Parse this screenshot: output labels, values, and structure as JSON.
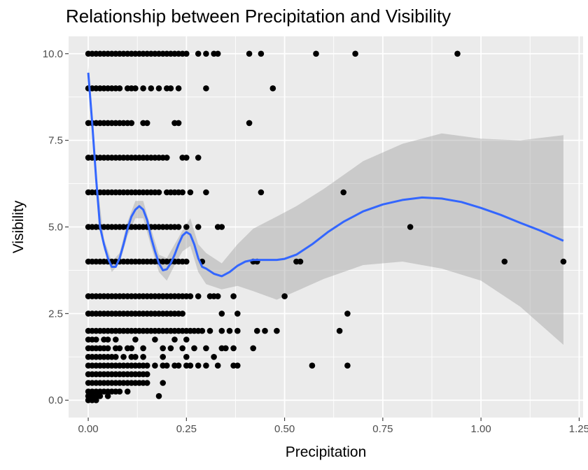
{
  "chart_data": {
    "type": "scatter",
    "title": "Relationship between Precipitation and Visibility",
    "xlabel": "Precipitation",
    "ylabel": "Visibility",
    "xlim": [
      -0.05,
      1.26
    ],
    "ylim": [
      -0.5,
      10.5
    ],
    "x_ticks": [
      0.0,
      0.25,
      0.5,
      0.75,
      1.0,
      1.25
    ],
    "x_tick_labels": [
      "0.00",
      "0.25",
      "0.50",
      "0.75",
      "1.00",
      "1.25"
    ],
    "y_ticks": [
      0.0,
      2.5,
      5.0,
      7.5,
      10.0
    ],
    "y_tick_labels": [
      "0.0",
      "2.5",
      "5.0",
      "7.5",
      "10.0"
    ],
    "grid": true,
    "panel_background": "#ebebeb",
    "grid_color": "#ffffff",
    "point_color": "#000000",
    "smooth_color": "#3366ff",
    "ribbon_color": "#999999",
    "points": [
      {
        "y": 10,
        "x": [
          0.0,
          0.01,
          0.02,
          0.03,
          0.04,
          0.05,
          0.06,
          0.07,
          0.08,
          0.09,
          0.1,
          0.11,
          0.12,
          0.13,
          0.14,
          0.15,
          0.16,
          0.17,
          0.18,
          0.19,
          0.2,
          0.21,
          0.22,
          0.23,
          0.24,
          0.25,
          0.28,
          0.3,
          0.32,
          0.33,
          0.41,
          0.44,
          0.58,
          0.68,
          0.94
        ]
      },
      {
        "y": 9,
        "x": [
          0.0,
          0.01,
          0.02,
          0.03,
          0.04,
          0.05,
          0.06,
          0.07,
          0.08,
          0.1,
          0.11,
          0.12,
          0.14,
          0.16,
          0.18,
          0.2,
          0.21,
          0.23,
          0.3,
          0.47
        ]
      },
      {
        "y": 8,
        "x": [
          0.0,
          0.01,
          0.02,
          0.03,
          0.04,
          0.05,
          0.06,
          0.07,
          0.08,
          0.09,
          0.1,
          0.11,
          0.14,
          0.15,
          0.22,
          0.23,
          0.41
        ]
      },
      {
        "y": 7,
        "x": [
          0.0,
          0.01,
          0.02,
          0.03,
          0.04,
          0.05,
          0.06,
          0.07,
          0.08,
          0.09,
          0.1,
          0.11,
          0.12,
          0.13,
          0.14,
          0.15,
          0.16,
          0.17,
          0.18,
          0.19,
          0.2,
          0.24,
          0.25,
          0.28
        ]
      },
      {
        "y": 6,
        "x": [
          0.0,
          0.01,
          0.02,
          0.03,
          0.04,
          0.05,
          0.06,
          0.07,
          0.08,
          0.09,
          0.1,
          0.11,
          0.12,
          0.13,
          0.14,
          0.15,
          0.16,
          0.17,
          0.18,
          0.2,
          0.21,
          0.22,
          0.23,
          0.24,
          0.26,
          0.3,
          0.44,
          0.65
        ]
      },
      {
        "y": 5,
        "x": [
          0.0,
          0.01,
          0.02,
          0.03,
          0.04,
          0.05,
          0.06,
          0.07,
          0.08,
          0.09,
          0.1,
          0.11,
          0.12,
          0.13,
          0.14,
          0.15,
          0.16,
          0.17,
          0.18,
          0.19,
          0.2,
          0.21,
          0.22,
          0.23,
          0.25,
          0.28,
          0.33,
          0.34,
          0.82
        ]
      },
      {
        "y": 4,
        "x": [
          0.0,
          0.01,
          0.02,
          0.03,
          0.04,
          0.05,
          0.06,
          0.07,
          0.08,
          0.09,
          0.1,
          0.11,
          0.12,
          0.13,
          0.14,
          0.15,
          0.16,
          0.17,
          0.18,
          0.19,
          0.2,
          0.21,
          0.22,
          0.23,
          0.24,
          0.25,
          0.29,
          0.42,
          0.43,
          0.53,
          0.54,
          1.06,
          1.21
        ]
      },
      {
        "y": 3,
        "x": [
          0.0,
          0.01,
          0.02,
          0.03,
          0.04,
          0.05,
          0.06,
          0.07,
          0.08,
          0.09,
          0.1,
          0.11,
          0.12,
          0.13,
          0.14,
          0.15,
          0.16,
          0.17,
          0.18,
          0.19,
          0.2,
          0.21,
          0.22,
          0.23,
          0.24,
          0.25,
          0.26,
          0.28,
          0.31,
          0.32,
          0.33,
          0.37,
          0.5
        ]
      },
      {
        "y": 2.5,
        "x": [
          0.0,
          0.01,
          0.02,
          0.03,
          0.04,
          0.05,
          0.06,
          0.07,
          0.08,
          0.09,
          0.1,
          0.11,
          0.12,
          0.13,
          0.14,
          0.15,
          0.16,
          0.17,
          0.18,
          0.19,
          0.2,
          0.21,
          0.22,
          0.23,
          0.24,
          0.34,
          0.38,
          0.66
        ]
      },
      {
        "y": 2,
        "x": [
          0.0,
          0.01,
          0.02,
          0.03,
          0.04,
          0.05,
          0.06,
          0.07,
          0.08,
          0.09,
          0.1,
          0.11,
          0.12,
          0.13,
          0.14,
          0.15,
          0.16,
          0.17,
          0.18,
          0.19,
          0.2,
          0.21,
          0.22,
          0.23,
          0.24,
          0.25,
          0.26,
          0.27,
          0.28,
          0.29,
          0.31,
          0.34,
          0.36,
          0.38,
          0.43,
          0.45,
          0.48,
          0.64
        ]
      },
      {
        "y": 1.75,
        "x": [
          0.0,
          0.01,
          0.02,
          0.04,
          0.05,
          0.07,
          0.12,
          0.17,
          0.22,
          0.25
        ]
      },
      {
        "y": 1.5,
        "x": [
          0.0,
          0.01,
          0.02,
          0.03,
          0.04,
          0.05,
          0.07,
          0.08,
          0.1,
          0.11,
          0.14,
          0.19,
          0.21,
          0.24,
          0.27,
          0.3,
          0.34,
          0.35,
          0.37,
          0.42
        ]
      },
      {
        "y": 1.25,
        "x": [
          0.0,
          0.01,
          0.02,
          0.03,
          0.04,
          0.05,
          0.06,
          0.07,
          0.09,
          0.11,
          0.12,
          0.14,
          0.19,
          0.25,
          0.32
        ]
      },
      {
        "y": 1,
        "x": [
          0.0,
          0.01,
          0.02,
          0.03,
          0.04,
          0.05,
          0.06,
          0.07,
          0.08,
          0.09,
          0.1,
          0.11,
          0.12,
          0.13,
          0.14,
          0.15,
          0.17,
          0.19,
          0.2,
          0.22,
          0.23,
          0.25,
          0.26,
          0.28,
          0.3,
          0.33,
          0.37,
          0.38,
          0.57,
          0.66
        ]
      },
      {
        "y": 0.75,
        "x": [
          0.0,
          0.01,
          0.02,
          0.03,
          0.04,
          0.05,
          0.06,
          0.07,
          0.08,
          0.09,
          0.1,
          0.11,
          0.12,
          0.13,
          0.14,
          0.15
        ]
      },
      {
        "y": 0.5,
        "x": [
          0.0,
          0.01,
          0.02,
          0.03,
          0.04,
          0.05,
          0.06,
          0.07,
          0.08,
          0.09,
          0.1,
          0.11,
          0.12,
          0.13,
          0.14,
          0.15,
          0.19
        ]
      },
      {
        "y": 0.25,
        "x": [
          0.0,
          0.01,
          0.02,
          0.03,
          0.04,
          0.05,
          0.06,
          0.07,
          0.08,
          0.1
        ]
      },
      {
        "y": 0.12,
        "x": [
          0.0,
          0.01,
          0.02,
          0.03,
          0.05,
          0.18
        ]
      },
      {
        "y": 0,
        "x": [
          0.0,
          0.01,
          0.02
        ]
      }
    ],
    "smooth_line": {
      "x": [
        0.0,
        0.01,
        0.02,
        0.03,
        0.04,
        0.05,
        0.06,
        0.07,
        0.08,
        0.09,
        0.1,
        0.11,
        0.12,
        0.13,
        0.14,
        0.15,
        0.16,
        0.17,
        0.18,
        0.19,
        0.2,
        0.21,
        0.22,
        0.23,
        0.24,
        0.25,
        0.26,
        0.27,
        0.28,
        0.29,
        0.3,
        0.32,
        0.34,
        0.36,
        0.38,
        0.4,
        0.42,
        0.45,
        0.48,
        0.5,
        0.53,
        0.57,
        0.61,
        0.65,
        0.7,
        0.75,
        0.8,
        0.85,
        0.9,
        0.95,
        1.0,
        1.05,
        1.1,
        1.15,
        1.21
      ],
      "y": [
        9.45,
        8.0,
        6.4,
        5.0,
        4.5,
        4.1,
        3.85,
        3.85,
        4.1,
        4.5,
        4.95,
        5.3,
        5.5,
        5.6,
        5.5,
        5.2,
        4.7,
        4.3,
        3.95,
        3.75,
        3.78,
        3.95,
        4.2,
        4.5,
        4.75,
        4.85,
        4.78,
        4.5,
        4.1,
        3.85,
        3.8,
        3.65,
        3.58,
        3.7,
        3.88,
        4.0,
        4.05,
        4.05,
        4.05,
        4.08,
        4.2,
        4.5,
        4.85,
        5.15,
        5.45,
        5.65,
        5.78,
        5.85,
        5.82,
        5.72,
        5.55,
        5.35,
        5.12,
        4.9,
        4.6
      ]
    },
    "ribbon": {
      "x": [
        0.0,
        0.02,
        0.04,
        0.06,
        0.08,
        0.1,
        0.12,
        0.14,
        0.16,
        0.18,
        0.2,
        0.22,
        0.24,
        0.26,
        0.28,
        0.3,
        0.34,
        0.38,
        0.42,
        0.48,
        0.53,
        0.6,
        0.7,
        0.8,
        0.9,
        1.0,
        1.1,
        1.21
      ],
      "lower": [
        9.25,
        6.25,
        4.35,
        3.7,
        3.95,
        4.75,
        5.25,
        5.25,
        4.45,
        3.7,
        3.45,
        3.9,
        4.3,
        4.45,
        3.7,
        3.35,
        3.2,
        3.3,
        3.15,
        2.9,
        3.15,
        3.5,
        3.9,
        4.0,
        3.8,
        3.45,
        2.7,
        1.6
      ],
      "upper": [
        9.65,
        6.55,
        4.65,
        4.0,
        4.25,
        5.15,
        5.75,
        5.75,
        4.95,
        4.2,
        4.1,
        4.5,
        4.9,
        5.25,
        4.5,
        4.25,
        3.95,
        4.5,
        4.95,
        5.3,
        5.6,
        6.1,
        6.9,
        7.4,
        7.7,
        7.55,
        7.5,
        7.65
      ]
    }
  }
}
